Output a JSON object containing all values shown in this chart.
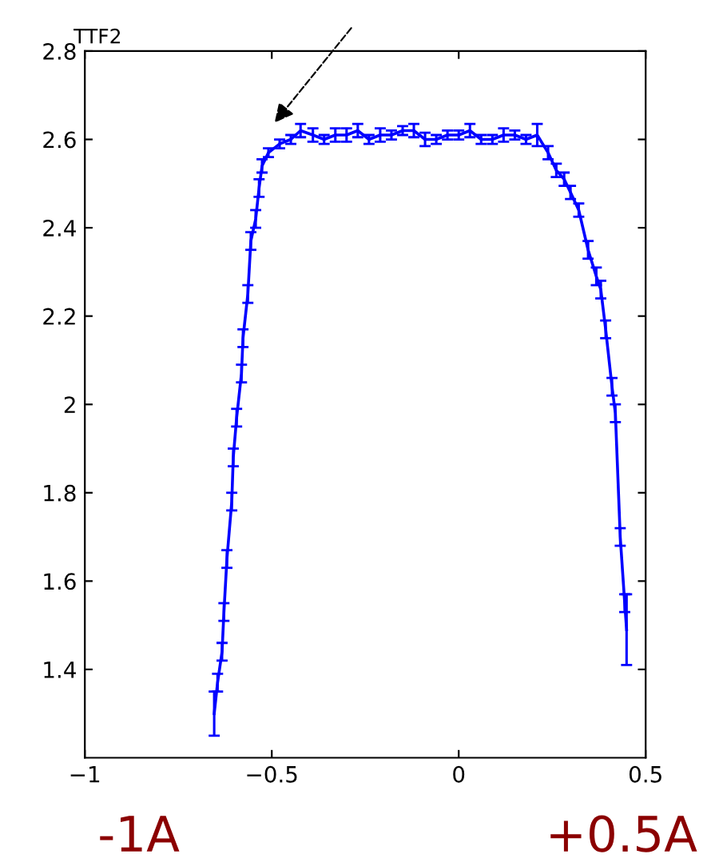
{
  "chart_data": {
    "type": "line",
    "ylabel": "TTF2",
    "x": [
      -0.654,
      -0.645,
      -0.633,
      -0.628,
      -0.62,
      -0.607,
      -0.603,
      -0.594,
      -0.581,
      -0.577,
      -0.564,
      -0.556,
      -0.543,
      -0.534,
      -0.526,
      -0.509,
      -0.479,
      -0.449,
      -0.423,
      -0.39,
      -0.36,
      -0.33,
      -0.3,
      -0.27,
      -0.24,
      -0.21,
      -0.18,
      -0.15,
      -0.12,
      -0.09,
      -0.06,
      -0.03,
      0.0,
      0.03,
      0.06,
      0.09,
      0.12,
      0.15,
      0.18,
      0.21,
      0.239,
      0.261,
      0.282,
      0.299,
      0.321,
      0.346,
      0.368,
      0.38,
      0.393,
      0.41,
      0.419,
      0.432,
      0.444,
      0.449
    ],
    "series": [
      {
        "color": "#0000ff",
        "values": [
          1.3,
          1.37,
          1.44,
          1.53,
          1.65,
          1.78,
          1.88,
          1.97,
          2.07,
          2.15,
          2.25,
          2.37,
          2.42,
          2.49,
          2.54,
          2.57,
          2.59,
          2.6,
          2.62,
          2.61,
          2.6,
          2.61,
          2.61,
          2.62,
          2.6,
          2.61,
          2.61,
          2.62,
          2.62,
          2.6,
          2.6,
          2.61,
          2.61,
          2.62,
          2.6,
          2.6,
          2.61,
          2.61,
          2.6,
          2.61,
          2.57,
          2.53,
          2.51,
          2.48,
          2.44,
          2.35,
          2.29,
          2.26,
          2.17,
          2.04,
          1.98,
          1.7,
          1.55,
          1.49
        ],
        "errors": [
          0.05,
          0.02,
          0.02,
          0.02,
          0.02,
          0.02,
          0.02,
          0.02,
          0.02,
          0.02,
          0.02,
          0.02,
          0.02,
          0.02,
          0.015,
          0.01,
          0.01,
          0.01,
          0.015,
          0.015,
          0.01,
          0.015,
          0.015,
          0.015,
          0.01,
          0.015,
          0.01,
          0.01,
          0.015,
          0.015,
          0.01,
          0.01,
          0.01,
          0.015,
          0.01,
          0.01,
          0.015,
          0.01,
          0.01,
          0.025,
          0.015,
          0.015,
          0.015,
          0.015,
          0.015,
          0.02,
          0.02,
          0.02,
          0.02,
          0.02,
          0.02,
          0.02,
          0.02,
          0.08
        ]
      }
    ],
    "xlim": [
      -1,
      0.5
    ],
    "ylim": [
      1.2,
      2.8
    ],
    "xticks": [
      {
        "value": -1,
        "label": "−1"
      },
      {
        "value": -0.5,
        "label": "−0.5"
      },
      0,
      0.5
    ],
    "yticks": [
      1.4,
      1.6,
      1.8,
      2,
      2.2,
      2.4,
      2.6,
      2.8
    ],
    "annotations": [
      "-1A",
      "+0.5A"
    ],
    "grid": false,
    "legend": false
  }
}
